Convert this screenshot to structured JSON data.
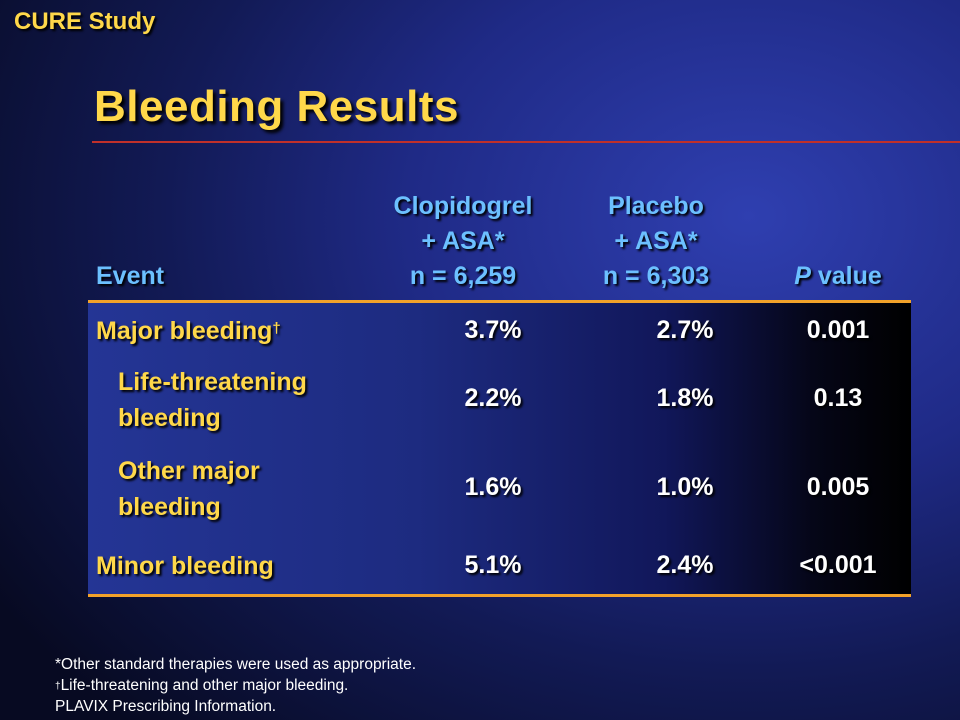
{
  "slide": {
    "label": "CURE Study",
    "title": "Bleeding Results"
  },
  "table": {
    "headers": {
      "event": "Event",
      "clopidogrel": [
        "Clopidogrel",
        "+ ASA*",
        "n = 6,259"
      ],
      "placebo": [
        "Placebo",
        "+ ASA*",
        "n = 6,303"
      ],
      "p_value_italic": "P",
      "p_value_rest": " value"
    },
    "rows": [
      {
        "event": "Major bleeding",
        "marker": "†",
        "clopidogrel": "3.7%",
        "placebo": "2.7%",
        "p": "0.001"
      },
      {
        "event_line1": "Life-threatening",
        "event_line2": "bleeding",
        "clopidogrel": "2.2%",
        "placebo": "1.8%",
        "p": "0.13"
      },
      {
        "event_line1": "Other major",
        "event_line2": "bleeding",
        "clopidogrel": "1.6%",
        "placebo": "1.0%",
        "p": "0.005"
      },
      {
        "event": "Minor bleeding",
        "clopidogrel": "5.1%",
        "placebo": "2.4%",
        "p": "<0.001"
      }
    ]
  },
  "footnotes": {
    "line1": "*Other standard therapies were used as appropriate.",
    "line2_marker": "†",
    "line2": "Life-threatening and other major bleeding.",
    "line3": "PLAVIX Prescribing Information."
  },
  "colors": {
    "title_yellow": "#ffd84a",
    "header_blue": "#6cc0ff",
    "rule_red": "#c0302a",
    "table_border_orange": "#f2a22a"
  }
}
